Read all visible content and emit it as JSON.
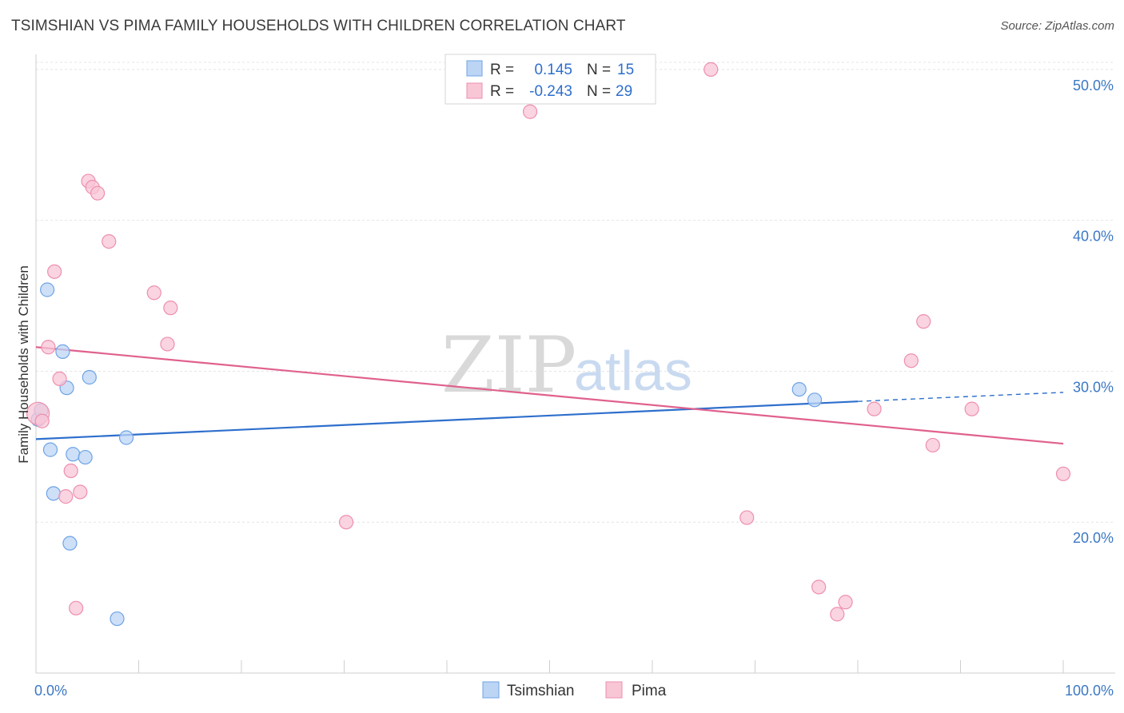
{
  "title": "TSIMSHIAN VS PIMA FAMILY HOUSEHOLDS WITH CHILDREN CORRELATION CHART",
  "source": "Source: ZipAtlas.com",
  "watermark": {
    "zip": "ZIP",
    "atlas": "atlas"
  },
  "legend": {
    "rows": [
      {
        "r_label": "R =",
        "r_value": "0.145",
        "n_label": "N =",
        "n_value": "15"
      },
      {
        "r_label": "R =",
        "r_value": "-0.243",
        "n_label": "N =",
        "n_value": "29"
      }
    ]
  },
  "chart_data": {
    "type": "scatter",
    "title": "TSIMSHIAN VS PIMA FAMILY HOUSEHOLDS WITH CHILDREN CORRELATION CHART",
    "xlabel": "",
    "ylabel": "Family Households with Children",
    "xlim": [
      0,
      100
    ],
    "ylim": [
      10,
      51
    ],
    "x_tick_labels": [
      "0.0%",
      "100.0%"
    ],
    "y_ticks": [
      20,
      30,
      40,
      50
    ],
    "y_tick_labels": [
      "20.0%",
      "30.0%",
      "40.0%",
      "50.0%"
    ],
    "grid": true,
    "legend_position": "top-center",
    "series": [
      {
        "name": "Tsimshian",
        "color": "#6fa3e6",
        "fill": "#bcd5f5",
        "points": [
          [
            0.2,
            26.8
          ],
          [
            0.5,
            27.4
          ],
          [
            1.1,
            35.4
          ],
          [
            1.4,
            24.8
          ],
          [
            1.7,
            21.9
          ],
          [
            2.6,
            31.3
          ],
          [
            3.0,
            28.9
          ],
          [
            3.3,
            18.6
          ],
          [
            3.6,
            24.5
          ],
          [
            4.8,
            24.3
          ],
          [
            5.2,
            29.6
          ],
          [
            7.9,
            13.6
          ],
          [
            8.8,
            25.6
          ],
          [
            74.3,
            28.8
          ],
          [
            75.8,
            28.1
          ]
        ],
        "trend": {
          "x0": 0,
          "y0": 25.5,
          "x1": 80,
          "y1": 28.0,
          "dash_x1": 100,
          "dash_y1": 28.6,
          "color": "#2e6fcc"
        }
      },
      {
        "name": "Pima",
        "color": "#ee8fae",
        "fill": "#f8c6d5",
        "points": [
          [
            0.2,
            27.2
          ],
          [
            0.6,
            26.7
          ],
          [
            1.2,
            31.6
          ],
          [
            1.8,
            36.6
          ],
          [
            2.3,
            29.5
          ],
          [
            2.9,
            21.7
          ],
          [
            3.4,
            23.4
          ],
          [
            3.9,
            14.3
          ],
          [
            4.3,
            22.0
          ],
          [
            5.1,
            42.6
          ],
          [
            5.5,
            42.2
          ],
          [
            6.0,
            41.8
          ],
          [
            7.1,
            38.6
          ],
          [
            11.5,
            35.2
          ],
          [
            12.8,
            31.8
          ],
          [
            13.1,
            34.2
          ],
          [
            30.2,
            20.0
          ],
          [
            48.1,
            47.2
          ],
          [
            65.7,
            50.0
          ],
          [
            69.2,
            20.3
          ],
          [
            76.2,
            15.7
          ],
          [
            78.0,
            13.9
          ],
          [
            78.8,
            14.7
          ],
          [
            81.6,
            27.5
          ],
          [
            85.2,
            30.7
          ],
          [
            86.4,
            33.3
          ],
          [
            87.3,
            25.1
          ],
          [
            91.1,
            27.5
          ],
          [
            100.0,
            23.2
          ]
        ],
        "trend": {
          "x0": 0,
          "y0": 31.6,
          "x1": 100,
          "y1": 25.2,
          "color": "#e0618e"
        }
      }
    ]
  },
  "bottom_legend": [
    {
      "name": "Tsimshian"
    },
    {
      "name": "Pima"
    }
  ]
}
